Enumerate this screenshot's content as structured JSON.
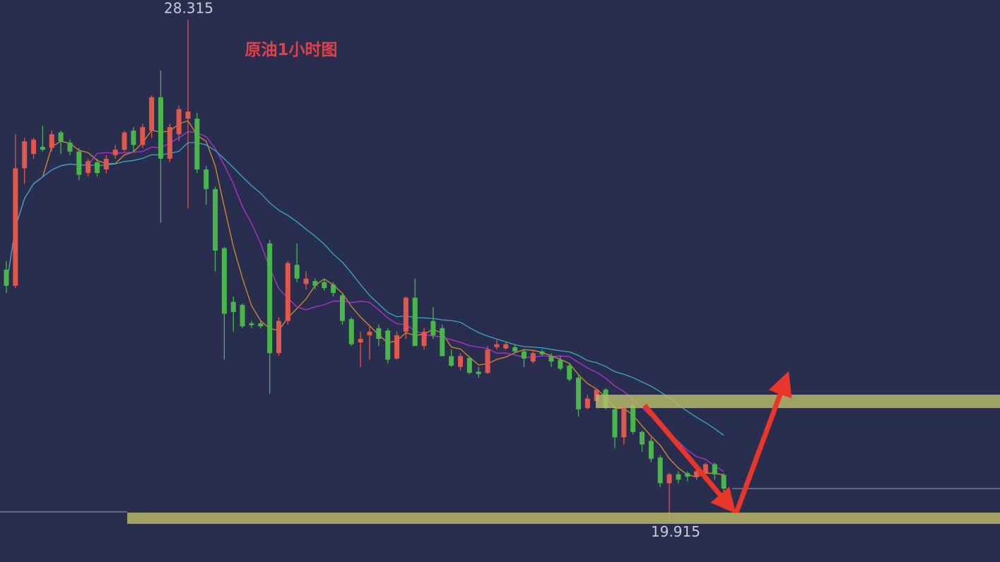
{
  "chart_data": {
    "type": "candlestick",
    "title": "原油1小时图",
    "max_label": 28.315,
    "min_label": 19.915,
    "ylim": [
      19.23,
      28.65
    ],
    "up_color": "#e0574c",
    "down_color": "#48b64b",
    "ma_colors": [
      "#d98a2a",
      "#b232d8",
      "#3aa6c6"
    ],
    "open": [
      24.13,
      23.86,
      25.83,
      26.07,
      26.19,
      26.17,
      26.43,
      26.26,
      26.11,
      25.75,
      25.93,
      25.81,
      26.05,
      26.14,
      26.46,
      26.22,
      26.46,
      27.02,
      25.99,
      26.4,
      26.66,
      26.66,
      25.81,
      25.48,
      24.49,
      23.59,
      23.54,
      23.23,
      23.23,
      24.57,
      22.73,
      23.27,
      24.21,
      23.89,
      23.94,
      23.92,
      23.88,
      23.7,
      23.3,
      22.91,
      23.03,
      23.15,
      23.11,
      22.64,
      23.09,
      23.66,
      22.85,
      23.27,
      23.15,
      22.68,
      22.5,
      22.65,
      22.42,
      22.4,
      22.83,
      22.81,
      22.83,
      22.76,
      22.59,
      22.76,
      22.68,
      22.62,
      22.52,
      22.32,
      21.81,
      21.93,
      22.12,
      21.79,
      21.32,
      21.85,
      21.41,
      21.26,
      20.98,
      20.55,
      20.7,
      20.72,
      20.66,
      20.72,
      20.87,
      20.69
    ],
    "high": [
      24.27,
      26.4,
      26.34,
      26.34,
      26.54,
      26.46,
      26.46,
      26.31,
      26.17,
      25.99,
      25.99,
      26.05,
      26.22,
      26.46,
      26.52,
      26.58,
      27.05,
      27.47,
      26.58,
      26.88,
      28.315,
      26.76,
      25.87,
      25.52,
      24.51,
      23.68,
      23.56,
      23.27,
      23.27,
      24.63,
      23.33,
      24.27,
      24.57,
      24.1,
      23.98,
      23.98,
      23.92,
      23.74,
      23.33,
      23.09,
      23.21,
      23.21,
      23.15,
      23.09,
      23.68,
      23.98,
      23.15,
      23.5,
      23.21,
      22.79,
      22.73,
      22.68,
      22.5,
      22.85,
      22.95,
      22.91,
      22.88,
      22.79,
      22.79,
      22.79,
      22.73,
      22.68,
      22.56,
      22.38,
      22.03,
      22.14,
      22.14,
      21.85,
      21.85,
      21.91,
      21.43,
      21.32,
      21.02,
      20.72,
      20.75,
      20.75,
      20.78,
      20.9,
      20.9,
      20.72
    ],
    "low": [
      23.74,
      23.82,
      25.57,
      25.99,
      26.11,
      26.11,
      26.07,
      26.05,
      25.63,
      25.69,
      25.69,
      25.75,
      25.99,
      26.11,
      26.11,
      26.17,
      26.34,
      24.92,
      25.93,
      26.28,
      25.16,
      25.75,
      25.22,
      24.1,
      22.62,
      23.09,
      23.15,
      23.15,
      23.15,
      22.05,
      22.68,
      23.21,
      23.92,
      23.8,
      23.8,
      23.78,
      23.68,
      23.21,
      22.85,
      22.5,
      22.62,
      22.85,
      22.56,
      22.62,
      22.97,
      22.85,
      22.79,
      22.97,
      22.68,
      22.5,
      22.44,
      22.38,
      22.32,
      22.38,
      22.79,
      22.79,
      22.73,
      22.5,
      22.56,
      22.68,
      22.5,
      22.44,
      22.26,
      21.67,
      21.79,
      21.91,
      21.79,
      21.14,
      21.2,
      21.37,
      21.08,
      20.9,
      20.49,
      19.915,
      20.55,
      20.58,
      20.61,
      20.66,
      20.61,
      20.39
    ],
    "close": [
      23.86,
      25.83,
      26.28,
      26.31,
      26.14,
      26.4,
      26.28,
      26.11,
      25.72,
      25.95,
      25.75,
      25.99,
      26.14,
      26.43,
      26.22,
      26.52,
      27.02,
      25.99,
      26.52,
      26.82,
      26.78,
      25.81,
      25.48,
      24.45,
      23.39,
      23.42,
      23.18,
      23.2,
      23.18,
      22.73,
      23.27,
      24.24,
      23.98,
      23.98,
      23.86,
      23.82,
      23.74,
      23.27,
      22.88,
      22.97,
      23.09,
      22.97,
      22.62,
      23.03,
      23.66,
      22.85,
      23.09,
      23.03,
      22.68,
      22.52,
      22.68,
      22.4,
      22.38,
      22.79,
      22.88,
      22.88,
      22.76,
      22.64,
      22.73,
      22.71,
      22.59,
      22.47,
      22.29,
      21.79,
      21.97,
      22.12,
      21.81,
      21.32,
      21.81,
      21.41,
      21.2,
      20.96,
      20.55,
      20.7,
      20.61,
      20.66,
      20.75,
      20.87,
      20.7,
      20.46
    ]
  }
}
